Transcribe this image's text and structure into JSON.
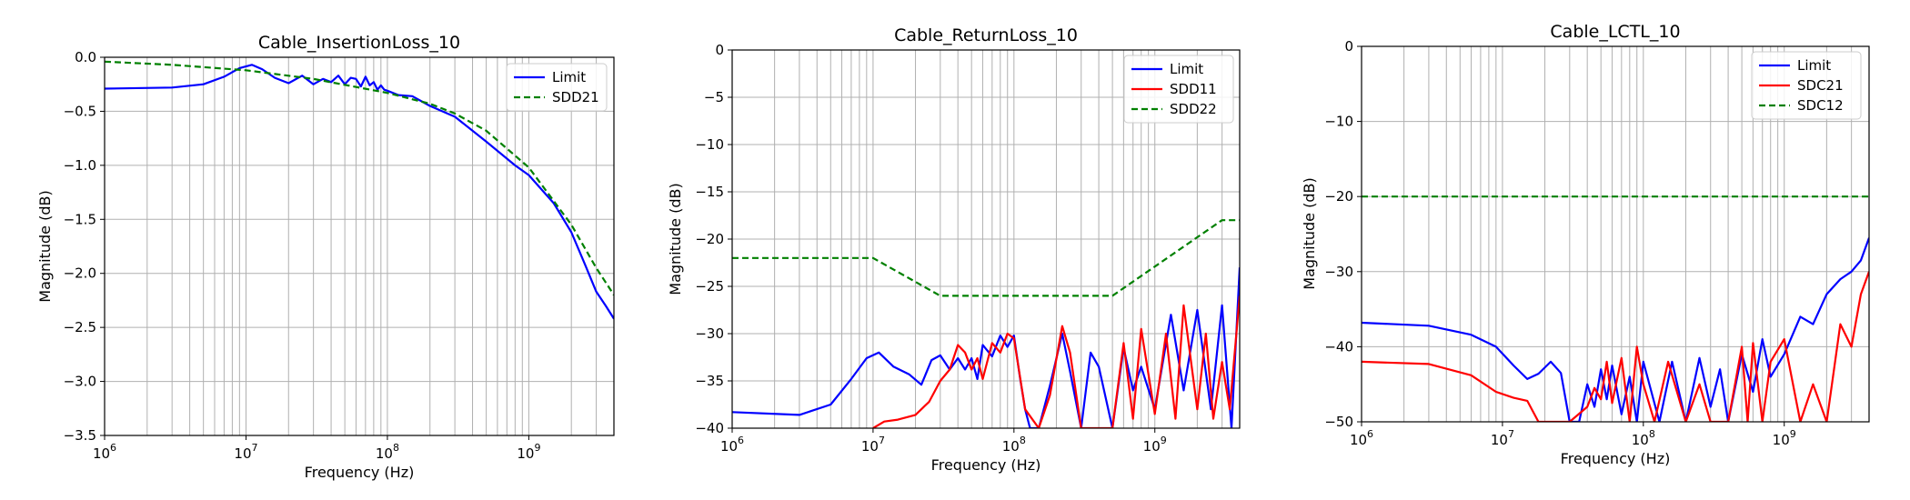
{
  "figure": {
    "xlabel": "Frequency (Hz)",
    "ylabel": "Magnitude (dB)"
  },
  "chart_data": [
    {
      "type": "line",
      "title": "Cable_InsertionLoss_10",
      "xlabel": "Frequency (Hz)",
      "ylabel": "Magnitude (dB)",
      "xscale": "log",
      "xlim": [
        1000000,
        4000000000
      ],
      "ylim": [
        -3.5,
        0.0
      ],
      "yticks": [
        "0.0",
        "−0.5",
        "−1.0",
        "−1.5",
        "−2.0",
        "−2.5",
        "−3.0",
        "−3.5"
      ],
      "grid": true,
      "legend": "top-right",
      "series": [
        {
          "name": "Limit",
          "color": "#0000ff",
          "style": "solid",
          "x": [
            1000000,
            3000000,
            5000000,
            7000000,
            9000000,
            11000000,
            13000000,
            16000000,
            20000000,
            25000000,
            30000000,
            35000000,
            40000000,
            45000000,
            50000000,
            55000000,
            60000000,
            65000000,
            70000000,
            75000000,
            80000000,
            85000000,
            90000000,
            95000000,
            100000000,
            120000000,
            150000000,
            200000000,
            300000000,
            500000000,
            800000000,
            1000000000,
            1500000000,
            2000000000,
            2500000000,
            3000000000,
            3500000000,
            4000000000
          ],
          "values": [
            -0.29,
            -0.28,
            -0.25,
            -0.18,
            -0.1,
            -0.07,
            -0.11,
            -0.19,
            -0.24,
            -0.17,
            -0.25,
            -0.2,
            -0.23,
            -0.17,
            -0.25,
            -0.19,
            -0.2,
            -0.27,
            -0.18,
            -0.26,
            -0.23,
            -0.3,
            -0.26,
            -0.3,
            -0.31,
            -0.35,
            -0.36,
            -0.45,
            -0.55,
            -0.78,
            -1.0,
            -1.09,
            -1.35,
            -1.62,
            -1.92,
            -2.17,
            -2.3,
            -2.42
          ]
        },
        {
          "name": "SDD21",
          "color": "#008000",
          "style": "dashed",
          "x": [
            1000000,
            3000000,
            10000000,
            30000000,
            100000000,
            200000000,
            300000000,
            500000000,
            1000000000,
            2000000000,
            3000000000,
            4000000000
          ],
          "values": [
            -0.04,
            -0.07,
            -0.12,
            -0.2,
            -0.33,
            -0.43,
            -0.52,
            -0.68,
            -1.02,
            -1.55,
            -1.95,
            -2.2
          ]
        }
      ]
    },
    {
      "type": "line",
      "title": "Cable_ReturnLoss_10",
      "xlabel": "Frequency (Hz)",
      "ylabel": "Magnitude (dB)",
      "xscale": "log",
      "xlim": [
        1000000,
        4000000000
      ],
      "ylim": [
        -40,
        0
      ],
      "yticks": [
        "0",
        "−5",
        "−10",
        "−15",
        "−20",
        "−25",
        "−30",
        "−35",
        "−40"
      ],
      "grid": true,
      "legend": "top-right",
      "series": [
        {
          "name": "Limit",
          "color": "#0000ff",
          "style": "solid",
          "x": [
            1000000,
            3000000,
            5000000,
            7000000,
            9000000,
            11000000,
            14000000,
            18000000,
            22000000,
            26000000,
            30000000,
            35000000,
            40000000,
            45000000,
            50000000,
            55000000,
            60000000,
            70000000,
            80000000,
            90000000,
            100000000,
            110000000,
            120000000,
            130000000,
            150000000,
            180000000,
            220000000,
            250000000,
            300000000,
            350000000,
            400000000,
            500000000,
            600000000,
            700000000,
            800000000,
            1000000000,
            1300000000,
            1600000000,
            2000000000,
            2500000000,
            3000000000,
            3500000000,
            4000000000
          ],
          "values": [
            -38.3,
            -38.6,
            -37.5,
            -34.8,
            -32.6,
            -32.0,
            -33.5,
            -34.3,
            -35.4,
            -32.8,
            -32.3,
            -33.8,
            -32.6,
            -33.8,
            -32.6,
            -34.8,
            -31.2,
            -32.4,
            -30.2,
            -31.4,
            -30.2,
            -34.5,
            -38.0,
            -40.0,
            -40.0,
            -35.5,
            -30.0,
            -34.0,
            -40.0,
            -32.0,
            -33.5,
            -40.0,
            -31.5,
            -36.0,
            -33.5,
            -38.0,
            -28.0,
            -36.0,
            -27.5,
            -38.0,
            -27.0,
            -40.0,
            -23.0
          ]
        },
        {
          "name": "SDD11",
          "color": "#ff0000",
          "style": "solid",
          "x": [
            10000000,
            12000000,
            15000000,
            20000000,
            25000000,
            30000000,
            35000000,
            40000000,
            45000000,
            50000000,
            55000000,
            60000000,
            70000000,
            80000000,
            90000000,
            100000000,
            120000000,
            150000000,
            180000000,
            220000000,
            250000000,
            300000000,
            400000000,
            500000000,
            600000000,
            700000000,
            800000000,
            1000000000,
            1200000000,
            1400000000,
            1600000000,
            2000000000,
            2300000000,
            2600000000,
            3000000000,
            3400000000,
            4000000000
          ],
          "values": [
            -40.0,
            -39.3,
            -39.1,
            -38.6,
            -37.2,
            -35.0,
            -33.8,
            -31.2,
            -32.0,
            -33.8,
            -32.6,
            -34.8,
            -31.0,
            -32.0,
            -30.0,
            -30.5,
            -38.0,
            -40.0,
            -36.5,
            -29.2,
            -32.0,
            -40.0,
            -40.0,
            -40.0,
            -31.0,
            -39.0,
            -29.5,
            -38.5,
            -30.0,
            -39.0,
            -27.0,
            -38.0,
            -30.0,
            -39.0,
            -33.0,
            -38.0,
            -26.0
          ]
        },
        {
          "name": "SDD22",
          "color": "#008000",
          "style": "dashed",
          "x": [
            1000000,
            10000000,
            30000000,
            500000000,
            3000000000,
            4000000000
          ],
          "values": [
            -22.0,
            -22.0,
            -26.0,
            -26.0,
            -18.0,
            -18.0
          ]
        }
      ]
    },
    {
      "type": "line",
      "title": "Cable_LCTL_10",
      "xlabel": "Frequency (Hz)",
      "ylabel": "Magnitude (dB)",
      "xscale": "log",
      "xlim": [
        1000000,
        4000000000
      ],
      "ylim": [
        -50,
        0
      ],
      "yticks": [
        "0",
        "−10",
        "−20",
        "−30",
        "−40",
        "−50"
      ],
      "grid": true,
      "legend": "top-right",
      "series": [
        {
          "name": "Limit",
          "color": "#0000ff",
          "style": "solid",
          "x": [
            1000000,
            3000000,
            6000000,
            9000000,
            12000000,
            15000000,
            18000000,
            22000000,
            26000000,
            30000000,
            35000000,
            40000000,
            45000000,
            50000000,
            55000000,
            60000000,
            70000000,
            80000000,
            90000000,
            100000000,
            130000000,
            160000000,
            200000000,
            250000000,
            300000000,
            350000000,
            400000000,
            500000000,
            600000000,
            700000000,
            800000000,
            1000000000,
            1300000000,
            1600000000,
            2000000000,
            2500000000,
            3000000000,
            3500000000,
            4000000000
          ],
          "values": [
            -36.8,
            -37.2,
            -38.4,
            -40.0,
            -42.5,
            -44.3,
            -43.6,
            -42.0,
            -43.5,
            -50.0,
            -50.0,
            -45.0,
            -48.0,
            -43.0,
            -47.0,
            -42.5,
            -49.0,
            -44.0,
            -50.0,
            -42.0,
            -50.0,
            -42.0,
            -50.0,
            -41.5,
            -48.0,
            -43.0,
            -50.0,
            -41.0,
            -46.0,
            -39.0,
            -44.0,
            -41.0,
            -36.0,
            -37.0,
            -33.0,
            -31.0,
            -30.0,
            -28.5,
            -25.5
          ]
        },
        {
          "name": "SDC21",
          "color": "#ff0000",
          "style": "solid",
          "x": [
            1000000,
            3000000,
            6000000,
            9000000,
            12000000,
            15000000,
            18000000,
            22000000,
            30000000,
            40000000,
            45000000,
            50000000,
            55000000,
            60000000,
            70000000,
            80000000,
            90000000,
            100000000,
            120000000,
            150000000,
            200000000,
            250000000,
            300000000,
            400000000,
            500000000,
            550000000,
            600000000,
            700000000,
            800000000,
            1000000000,
            1300000000,
            1600000000,
            2000000000,
            2500000000,
            3000000000,
            3500000000,
            4000000000
          ],
          "values": [
            -42.0,
            -42.3,
            -43.8,
            -46.0,
            -46.8,
            -47.2,
            -50.0,
            -50.0,
            -50.0,
            -48.0,
            -45.5,
            -47.0,
            -42.0,
            -47.5,
            -41.5,
            -50.0,
            -40.0,
            -45.0,
            -50.0,
            -42.0,
            -50.0,
            -45.0,
            -50.0,
            -50.0,
            -40.0,
            -50.0,
            -39.5,
            -50.0,
            -42.0,
            -39.0,
            -50.0,
            -45.0,
            -50.0,
            -37.0,
            -40.0,
            -33.0,
            -30.0
          ]
        },
        {
          "name": "SDC12",
          "color": "#008000",
          "style": "dashed",
          "x": [
            1000000,
            4000000000
          ],
          "values": [
            -20.0,
            -20.0
          ]
        }
      ]
    }
  ]
}
